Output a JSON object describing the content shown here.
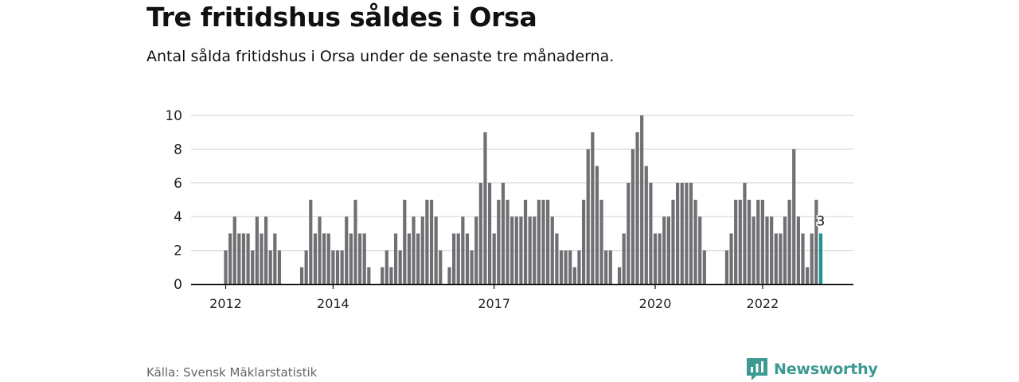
{
  "title": "Tre fritidshus såldes i Orsa",
  "subtitle": "Antal sålda fritidshus i Orsa under de senaste tre månaderna.",
  "source": "Källa: Svensk Mäklarstatistik",
  "brand": {
    "name": "Newsworthy",
    "color": "#3d9a91",
    "icon": "newsworthy-bar-chart-logo-icon"
  },
  "colors": {
    "bar": "#707074",
    "highlight": "#17958d",
    "grid": "#d8d8d8",
    "axis": "#111111"
  },
  "chart_data": {
    "type": "bar",
    "title": "Tre fritidshus såldes i Orsa",
    "subtitle": "Antal sålda fritidshus i Orsa under de senaste tre månaderna.",
    "xlabel": "",
    "ylabel": "",
    "ylim": [
      0,
      10
    ],
    "yticks": [
      0,
      2,
      4,
      6,
      8,
      10
    ],
    "grid": true,
    "x_tick_labels": [
      {
        "label": "2012",
        "index": 0
      },
      {
        "label": "2014",
        "index": 24
      },
      {
        "label": "2017",
        "index": 60
      },
      {
        "label": "2020",
        "index": 96
      },
      {
        "label": "2022",
        "index": 120
      }
    ],
    "period_note": "rolling three-month totals, one bar per month, gaps where no value",
    "values": [
      2,
      3,
      4,
      3,
      3,
      3,
      2,
      4,
      3,
      4,
      2,
      3,
      2,
      null,
      null,
      null,
      null,
      1,
      2,
      5,
      3,
      4,
      3,
      3,
      2,
      2,
      2,
      4,
      3,
      5,
      3,
      3,
      1,
      null,
      null,
      1,
      2,
      1,
      3,
      2,
      5,
      3,
      4,
      3,
      4,
      5,
      5,
      4,
      2,
      null,
      1,
      3,
      3,
      4,
      3,
      2,
      4,
      6,
      9,
      6,
      3,
      5,
      6,
      5,
      4,
      4,
      4,
      5,
      4,
      4,
      5,
      5,
      5,
      4,
      3,
      2,
      2,
      2,
      1,
      2,
      5,
      8,
      9,
      7,
      5,
      2,
      2,
      null,
      1,
      3,
      6,
      8,
      9,
      10,
      7,
      6,
      3,
      3,
      4,
      4,
      5,
      6,
      6,
      6,
      6,
      5,
      4,
      2,
      null,
      null,
      null,
      null,
      2,
      3,
      5,
      5,
      6,
      5,
      4,
      5,
      5,
      4,
      4,
      3,
      3,
      4,
      5,
      8,
      4,
      3,
      1,
      3,
      5,
      3
    ],
    "highlight": {
      "index": 133,
      "value": 3,
      "label": "3"
    }
  }
}
